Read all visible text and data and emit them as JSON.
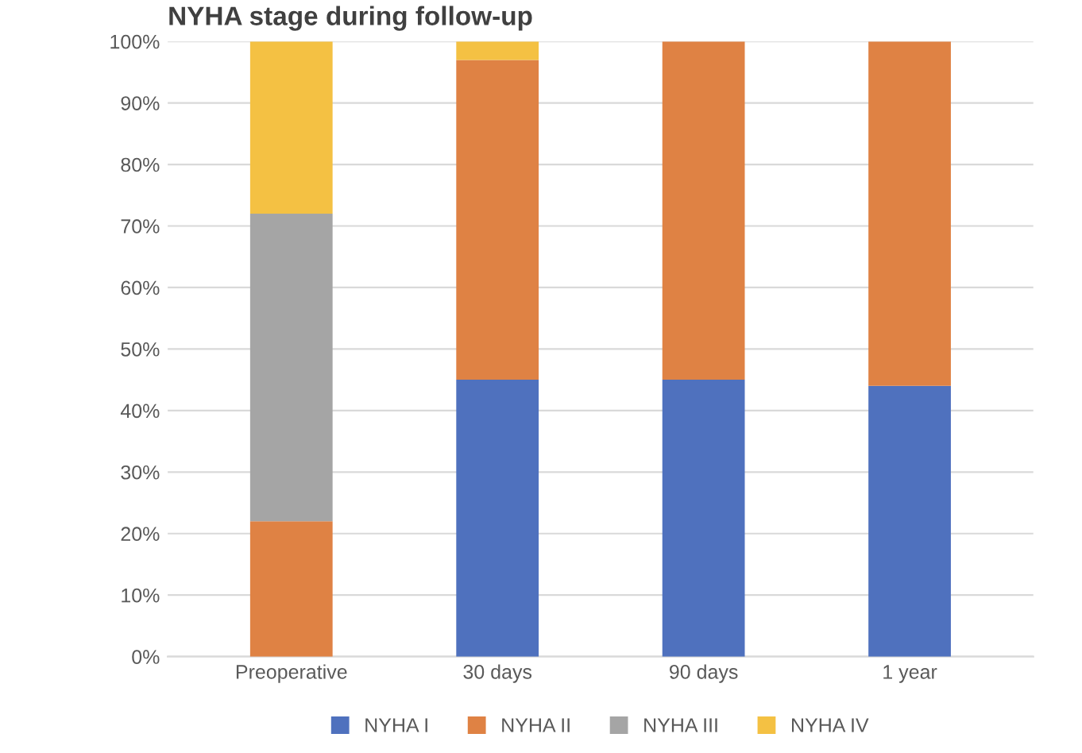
{
  "chart_data": {
    "type": "bar",
    "stacked": true,
    "title": "NYHA stage during follow-up",
    "categories": [
      "Preoperative",
      "30 days",
      "90 days",
      "1 year"
    ],
    "series": [
      {
        "name": "NYHA I",
        "color": "#4f71be",
        "values": [
          0,
          45,
          45,
          44
        ]
      },
      {
        "name": "NYHA II",
        "color": "#df8244",
        "values": [
          22,
          52,
          55,
          56
        ]
      },
      {
        "name": "NYHA III",
        "color": "#a5a5a5",
        "values": [
          50,
          0,
          0,
          0
        ]
      },
      {
        "name": "NYHA IV",
        "color": "#f4c143",
        "values": [
          28,
          3,
          0,
          0
        ]
      }
    ],
    "ylim": [
      0,
      100
    ],
    "yticks": [
      {
        "value": 0,
        "label": "0%"
      },
      {
        "value": 10,
        "label": "10%"
      },
      {
        "value": 20,
        "label": "20%"
      },
      {
        "value": 30,
        "label": "30%"
      },
      {
        "value": 40,
        "label": "40%"
      },
      {
        "value": 50,
        "label": "50%"
      },
      {
        "value": 60,
        "label": "60%"
      },
      {
        "value": 70,
        "label": "70%"
      },
      {
        "value": 80,
        "label": "80%"
      },
      {
        "value": 90,
        "label": "90%"
      },
      {
        "value": 100,
        "label": "100%"
      }
    ],
    "grid": "y",
    "legend": "bottom"
  }
}
